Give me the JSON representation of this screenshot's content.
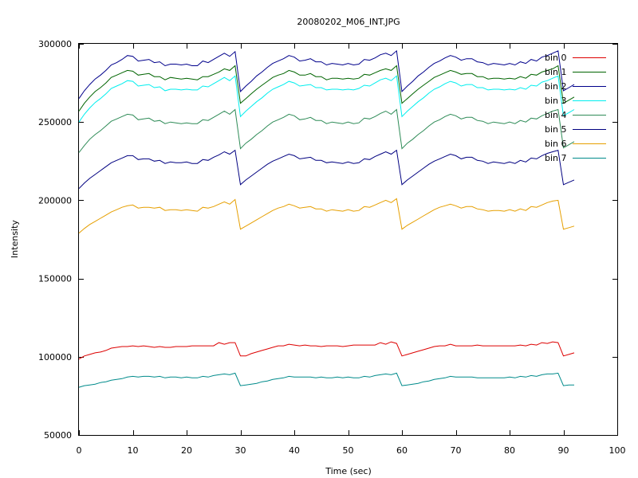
{
  "chart_data": {
    "type": "line",
    "title": "20080202_M06_INT.JPG",
    "xlabel": "Time (sec)",
    "ylabel": "Intensity",
    "xlim": [
      0,
      100
    ],
    "ylim": [
      50000,
      300000
    ],
    "xticks": [
      0,
      10,
      20,
      30,
      40,
      50,
      60,
      70,
      80,
      90,
      100
    ],
    "xtick_labels": [
      "0",
      "10",
      "20",
      "30",
      "40",
      "50",
      "60",
      "70",
      "80",
      "90",
      "100"
    ],
    "yticks": [
      50000,
      100000,
      150000,
      200000,
      250000,
      300000
    ],
    "ytick_labels": [
      "50000",
      "100000",
      "150000",
      "200000",
      "250000",
      "300000"
    ],
    "grid": false,
    "legend_position": "top-right",
    "x": [
      0,
      1,
      2,
      3,
      4,
      5,
      6,
      7,
      8,
      9,
      10,
      11,
      12,
      13,
      14,
      15,
      16,
      17,
      18,
      19,
      20,
      21,
      22,
      23,
      24,
      25,
      26,
      27,
      28,
      29,
      30,
      31,
      32,
      33,
      34,
      35,
      36,
      37,
      38,
      39,
      40,
      41,
      42,
      43,
      44,
      45,
      46,
      47,
      48,
      49,
      50,
      51,
      52,
      53,
      54,
      55,
      56,
      57,
      58,
      59,
      60,
      61,
      62,
      63,
      64,
      65,
      66,
      67,
      68,
      69,
      70,
      71,
      72,
      73,
      74,
      75,
      76,
      77,
      78,
      79,
      80,
      81,
      82,
      83,
      84,
      85,
      86,
      87,
      88,
      89,
      90,
      91,
      92
    ],
    "series": [
      {
        "name": "bin 0",
        "color": "#dd0000",
        "values": [
          98500,
          100500,
          101500,
          102500,
          103000,
          104000,
          105500,
          106000,
          106500,
          106500,
          107000,
          106500,
          107000,
          106500,
          106000,
          106500,
          106000,
          106000,
          106500,
          106500,
          106500,
          107000,
          107000,
          107000,
          107000,
          107000,
          109000,
          108000,
          109000,
          109000,
          100500,
          100500,
          102000,
          103000,
          104000,
          105000,
          106000,
          107000,
          107000,
          108000,
          107500,
          107000,
          107500,
          107000,
          107000,
          106500,
          107000,
          107000,
          107000,
          106500,
          107000,
          107500,
          107500,
          107500,
          107500,
          107500,
          109000,
          108000,
          109500,
          108500,
          100500,
          101500,
          102500,
          103500,
          104500,
          105500,
          106500,
          107000,
          107000,
          108000,
          107000,
          107000,
          107000,
          107000,
          107500,
          107000,
          107000,
          107000,
          107000,
          107000,
          107000,
          107000,
          107500,
          107000,
          108000,
          107500,
          109000,
          108500,
          109500,
          109000,
          100500,
          101500,
          102500
        ]
      },
      {
        "name": "bin 1",
        "color": "#006400",
        "values": [
          257000,
          262000,
          266000,
          269500,
          272000,
          275000,
          278500,
          280000,
          281500,
          283000,
          282500,
          280000,
          280500,
          281000,
          279000,
          279000,
          277000,
          278500,
          278000,
          277500,
          278000,
          277500,
          277000,
          279000,
          279000,
          280500,
          282000,
          284000,
          283000,
          286000,
          262000,
          265000,
          268000,
          271000,
          273500,
          276000,
          278500,
          280000,
          281000,
          283000,
          282000,
          280000,
          280000,
          281000,
          279000,
          279000,
          277000,
          278000,
          278000,
          277500,
          278000,
          277500,
          278000,
          280500,
          280000,
          281500,
          283000,
          284000,
          283000,
          286000,
          262000,
          265000,
          268000,
          271000,
          273500,
          276000,
          278500,
          280000,
          281500,
          283000,
          282000,
          280500,
          281000,
          281000,
          279000,
          279000,
          277500,
          278000,
          278000,
          277500,
          278000,
          277500,
          279000,
          278000,
          280500,
          280000,
          282000,
          283000,
          284000,
          286000,
          262000,
          264000,
          266000
        ]
      },
      {
        "name": "bin 2",
        "color": "#00008b",
        "values": [
          265000,
          270000,
          274000,
          277500,
          280000,
          283000,
          286500,
          288000,
          290000,
          292500,
          292000,
          289000,
          289500,
          290000,
          288000,
          288500,
          286000,
          287000,
          287000,
          286500,
          287000,
          286000,
          286000,
          289000,
          288000,
          290000,
          292000,
          294000,
          292000,
          295000,
          269500,
          273000,
          276000,
          279500,
          282000,
          285000,
          287500,
          289000,
          290500,
          292500,
          291500,
          289000,
          289500,
          290500,
          288500,
          288500,
          286500,
          287500,
          287000,
          286500,
          287500,
          286500,
          287000,
          290000,
          289500,
          291000,
          293000,
          294000,
          292500,
          295500,
          269500,
          273000,
          276000,
          279500,
          282000,
          285000,
          287500,
          289000,
          291000,
          292500,
          291500,
          289500,
          290500,
          290500,
          288500,
          288000,
          286500,
          287500,
          287000,
          286500,
          287500,
          286500,
          288500,
          287500,
          290000,
          289000,
          291500,
          292500,
          294000,
          295500,
          270000,
          272000,
          274000
        ]
      },
      {
        "name": "bin 3",
        "color": "#00eeee",
        "values": [
          250000,
          255000,
          259000,
          262500,
          265000,
          268000,
          271500,
          273000,
          274500,
          276500,
          276000,
          273000,
          273500,
          274000,
          272000,
          272500,
          270000,
          271000,
          271000,
          270500,
          271000,
          270500,
          270500,
          273000,
          272500,
          274500,
          276500,
          278500,
          276500,
          279500,
          253500,
          257000,
          260000,
          263000,
          265500,
          268500,
          271000,
          272500,
          274000,
          276000,
          275000,
          273000,
          273500,
          274000,
          272000,
          272000,
          270500,
          271000,
          271000,
          270500,
          271000,
          270500,
          271500,
          273500,
          273000,
          275000,
          277000,
          278000,
          276500,
          279500,
          253500,
          257000,
          260000,
          263000,
          265500,
          268500,
          271000,
          272500,
          274500,
          276000,
          275000,
          273000,
          274000,
          274000,
          272000,
          272000,
          270500,
          271000,
          271000,
          270500,
          271000,
          270500,
          272000,
          271000,
          273500,
          273000,
          275500,
          276500,
          278000,
          279500,
          254000,
          256000,
          258000
        ]
      },
      {
        "name": "bin 4",
        "color": "#2e8b57",
        "values": [
          230500,
          235000,
          239000,
          242000,
          244500,
          247500,
          250500,
          252000,
          253500,
          255000,
          254500,
          251500,
          252000,
          252500,
          250500,
          251000,
          249000,
          250000,
          249500,
          249000,
          249500,
          249000,
          249000,
          251500,
          251000,
          253000,
          255000,
          257000,
          255000,
          258000,
          233000,
          236500,
          239000,
          242000,
          244500,
          247500,
          250000,
          251500,
          253000,
          255000,
          254000,
          251500,
          252000,
          253000,
          251000,
          251000,
          249000,
          250000,
          249500,
          249000,
          250000,
          249000,
          249500,
          252500,
          252000,
          253500,
          255500,
          257000,
          255000,
          258000,
          233000,
          236500,
          239000,
          242000,
          244500,
          247500,
          250000,
          251500,
          253500,
          255000,
          254000,
          252000,
          253000,
          253000,
          251000,
          250500,
          249000,
          250000,
          249500,
          249000,
          250000,
          249000,
          251000,
          250000,
          252500,
          252000,
          254000,
          255500,
          257000,
          258000,
          233500,
          235500,
          237500
        ]
      },
      {
        "name": "bin 5",
        "color": "#000080",
        "values": [
          207500,
          211000,
          214000,
          216500,
          219000,
          221500,
          224000,
          225500,
          227000,
          228500,
          228500,
          226000,
          226500,
          226500,
          225000,
          225500,
          223500,
          224500,
          224000,
          224000,
          224500,
          223500,
          223500,
          226000,
          225500,
          227500,
          229000,
          231000,
          229500,
          232000,
          210000,
          213000,
          215500,
          218000,
          220500,
          223000,
          225000,
          226500,
          228000,
          229500,
          228500,
          226500,
          227000,
          227500,
          225500,
          225500,
          224000,
          224500,
          224000,
          223500,
          224500,
          223500,
          224000,
          226500,
          226000,
          228000,
          229500,
          231000,
          229500,
          232000,
          210000,
          213000,
          215500,
          218000,
          220500,
          223000,
          225000,
          226500,
          228000,
          229500,
          228500,
          226500,
          227500,
          227500,
          225500,
          225000,
          223500,
          224500,
          224000,
          223500,
          224500,
          223500,
          225500,
          224500,
          227000,
          226500,
          228500,
          230000,
          231000,
          232000,
          210000,
          211500,
          213000
        ]
      },
      {
        "name": "bin 6",
        "color": "#e69f00",
        "values": [
          179000,
          182000,
          184500,
          186500,
          188500,
          190500,
          192500,
          194000,
          195500,
          196500,
          197000,
          195000,
          195500,
          195500,
          195000,
          195500,
          193500,
          194000,
          194000,
          193500,
          194000,
          193500,
          193000,
          195500,
          195000,
          196000,
          197500,
          199000,
          197500,
          200500,
          181500,
          183500,
          185500,
          187500,
          189500,
          191500,
          193500,
          195000,
          196000,
          197500,
          196500,
          195000,
          195500,
          196000,
          194500,
          194500,
          193000,
          194000,
          193500,
          193000,
          194000,
          193000,
          193500,
          196000,
          195500,
          197000,
          198500,
          200000,
          198500,
          201000,
          181500,
          184000,
          186000,
          188000,
          190000,
          192000,
          194000,
          195500,
          196500,
          197500,
          196500,
          195000,
          196000,
          196000,
          194500,
          194000,
          193000,
          193500,
          193500,
          193000,
          194000,
          193000,
          194500,
          193500,
          196000,
          195500,
          197000,
          198500,
          199500,
          200000,
          181500,
          182500,
          183500
        ]
      },
      {
        "name": "bin 7",
        "color": "#008b8b",
        "values": [
          80500,
          81500,
          82000,
          82500,
          83500,
          84000,
          85000,
          85500,
          86000,
          87000,
          87500,
          87000,
          87500,
          87500,
          87000,
          87500,
          86500,
          87000,
          87000,
          86500,
          87000,
          86500,
          86500,
          87500,
          87000,
          88000,
          88500,
          89000,
          88500,
          89500,
          81500,
          82000,
          82500,
          83000,
          84000,
          84500,
          85500,
          86000,
          86500,
          87500,
          87000,
          87000,
          87000,
          87000,
          86500,
          87000,
          86500,
          86500,
          87000,
          86500,
          87000,
          86500,
          86500,
          87500,
          87000,
          88000,
          88500,
          89000,
          88500,
          89500,
          81500,
          82000,
          82500,
          83000,
          84000,
          84500,
          85500,
          86000,
          86500,
          87500,
          87000,
          87000,
          87000,
          87000,
          86500,
          86500,
          86500,
          86500,
          86500,
          86500,
          87000,
          86500,
          87500,
          87000,
          88000,
          87500,
          88500,
          89000,
          89000,
          89500,
          81500,
          82000,
          82000
        ]
      }
    ]
  }
}
